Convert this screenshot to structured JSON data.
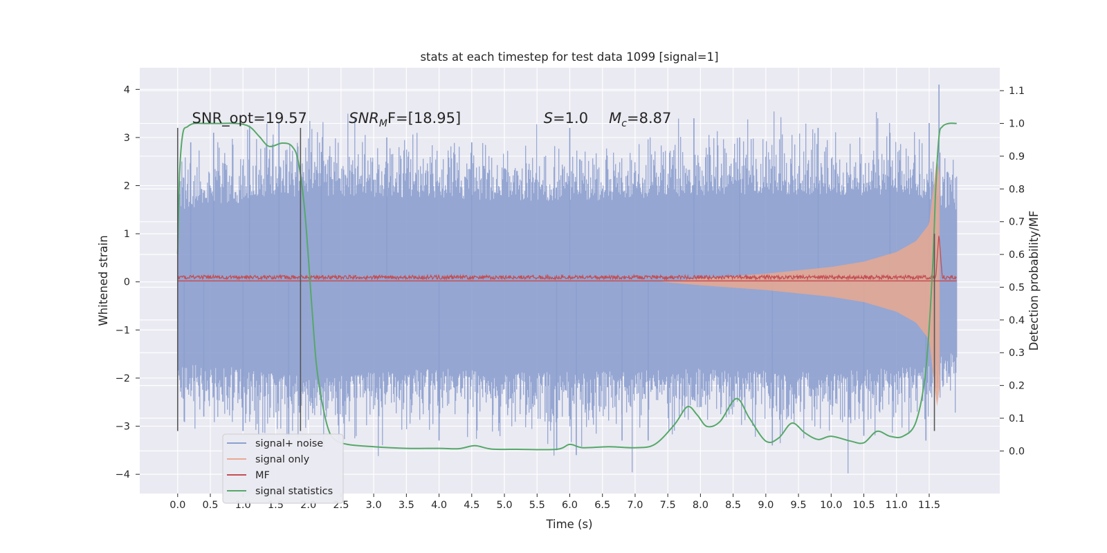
{
  "chart_data": {
    "type": "line",
    "title": "stats at each timestep for test data 1099 [signal=1]",
    "xlabel": "Time (s)",
    "ylabel": "Whitened strain",
    "y2label": "Detection probability/MF",
    "xlim": [
      -0.58,
      12.58
    ],
    "ylim": [
      -4.4,
      4.45
    ],
    "y2lim": [
      -0.13,
      1.17
    ],
    "x_ticks": [
      "0.0",
      "0.5",
      "1.0",
      "1.5",
      "2.0",
      "2.5",
      "3.0",
      "3.5",
      "4.0",
      "4.5",
      "5.0",
      "5.5",
      "6.0",
      "6.5",
      "7.0",
      "7.5",
      "8.0",
      "8.5",
      "9.0",
      "9.5",
      "10.0",
      "10.5",
      "11.0",
      "11.5"
    ],
    "y_ticks": [
      "4",
      "3",
      "2",
      "1",
      "0",
      "−1",
      "−2",
      "−3",
      "−4"
    ],
    "y2_ticks": [
      "1.1",
      "1.0",
      "0.9",
      "0.8",
      "0.7",
      "0.6",
      "0.5",
      "0.4",
      "0.3",
      "0.2",
      "0.1",
      "0.0"
    ],
    "grid": true,
    "legend_position": "lower-left",
    "annotations": [
      {
        "text": "SNR_opt=19.57",
        "x": 0.22,
        "y": 3.2
      },
      {
        "text": "SNR_MF=[18.95]",
        "x": 2.62,
        "y": 3.2
      },
      {
        "text": "S=1.0",
        "x": 5.6,
        "y": 3.2
      },
      {
        "text": "M_c=8.87",
        "x": 6.6,
        "y": 3.2
      }
    ],
    "vlines": [
      {
        "x": 0.0,
        "ymin": -3.1,
        "ymax": 3.2,
        "color": "#555555"
      },
      {
        "x": 1.88,
        "ymin": -3.1,
        "ymax": 3.2,
        "color": "#555555"
      },
      {
        "x": 11.58,
        "ymin": -3.1,
        "ymax": 1.0,
        "color": "#555555"
      }
    ],
    "series": [
      {
        "name": "signal+ noise",
        "color": "#8c9fce",
        "kind": "noise-band",
        "t_range": [
          0.0,
          11.92
        ],
        "envelope": {
          "x": [
            0,
            2,
            4,
            6,
            8,
            10,
            11.3,
            11.92
          ],
          "hi": [
            2.0,
            2.4,
            2.3,
            2.2,
            2.4,
            2.4,
            2.4,
            1.9
          ],
          "lo": [
            -2.2,
            -2.6,
            -2.4,
            -2.5,
            -2.4,
            -2.5,
            -2.3,
            -1.9
          ]
        },
        "spikes_hi": [
          [
            0.2,
            2.9
          ],
          [
            0.55,
            3.1
          ],
          [
            1.1,
            3.25
          ],
          [
            1.55,
            3.3
          ],
          [
            2.2,
            2.7
          ],
          [
            3.2,
            3.0
          ],
          [
            4.5,
            2.9
          ],
          [
            6.0,
            3.2
          ],
          [
            7.9,
            3.4
          ],
          [
            8.6,
            3.0
          ],
          [
            9.8,
            3.2
          ],
          [
            10.9,
            3.1
          ],
          [
            11.5,
            3.3
          ],
          [
            11.65,
            4.1
          ]
        ],
        "spikes_lo": [
          [
            0.1,
            -2.9
          ],
          [
            0.4,
            -2.8
          ],
          [
            1.0,
            -3.1
          ],
          [
            1.7,
            -3.2
          ],
          [
            4.0,
            -3.3
          ],
          [
            5.8,
            -3.5
          ],
          [
            6.1,
            -3.6
          ],
          [
            6.8,
            -3.3
          ],
          [
            7.2,
            -3.3
          ],
          [
            9.1,
            -3.4
          ],
          [
            10.5,
            -3.2
          ],
          [
            11.45,
            -3.3
          ]
        ]
      },
      {
        "name": "signal only",
        "color": "#e8a890",
        "kind": "chirp",
        "x": [
          7.4,
          8.0,
          8.5,
          9.0,
          9.5,
          10.0,
          10.5,
          11.0,
          11.3,
          11.5,
          11.62,
          11.66
        ],
        "amplitude": [
          0.0,
          0.07,
          0.12,
          0.17,
          0.24,
          0.31,
          0.42,
          0.62,
          0.85,
          1.2,
          2.6,
          2.2
        ]
      },
      {
        "name": "MF",
        "color": "#c44e52",
        "kind": "mf",
        "baseline": 0.08,
        "jitter": 0.08,
        "peak": {
          "x": 11.65,
          "y": 1.0
        },
        "t_range": [
          0.0,
          11.92
        ]
      },
      {
        "name": "signal statistics",
        "color": "#55a868",
        "axis": "right",
        "x": [
          0.0,
          0.03,
          0.08,
          0.15,
          0.25,
          0.4,
          0.6,
          0.9,
          1.1,
          1.25,
          1.4,
          1.6,
          1.75,
          1.85,
          1.95,
          2.05,
          2.12,
          2.2,
          2.3,
          2.4,
          2.6,
          3.0,
          3.5,
          4.0,
          4.3,
          4.55,
          4.8,
          5.2,
          5.8,
          6.0,
          6.2,
          6.6,
          7.0,
          7.3,
          7.6,
          7.8,
          7.95,
          8.1,
          8.3,
          8.55,
          8.75,
          9.0,
          9.2,
          9.4,
          9.6,
          9.8,
          10.0,
          10.3,
          10.5,
          10.7,
          10.9,
          11.1,
          11.3,
          11.45,
          11.55,
          11.6,
          11.65,
          11.7,
          11.8,
          11.92
        ],
        "y": [
          0.6,
          0.85,
          0.97,
          0.99,
          1.0,
          1.0,
          1.0,
          1.0,
          0.99,
          0.96,
          0.93,
          0.94,
          0.93,
          0.88,
          0.72,
          0.45,
          0.27,
          0.16,
          0.07,
          0.035,
          0.02,
          0.013,
          0.008,
          0.008,
          0.007,
          0.016,
          0.006,
          0.005,
          0.005,
          0.02,
          0.01,
          0.013,
          0.01,
          0.02,
          0.08,
          0.135,
          0.11,
          0.075,
          0.09,
          0.16,
          0.1,
          0.03,
          0.04,
          0.085,
          0.055,
          0.035,
          0.045,
          0.03,
          0.025,
          0.06,
          0.045,
          0.045,
          0.09,
          0.25,
          0.55,
          0.8,
          0.96,
          0.99,
          1.0,
          1.0
        ]
      }
    ]
  }
}
